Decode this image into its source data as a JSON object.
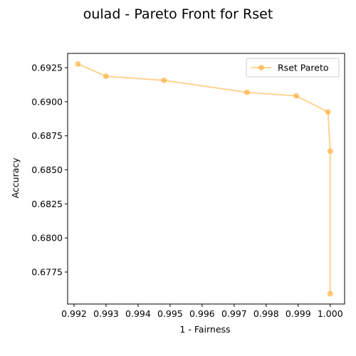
{
  "chart_data": {
    "type": "line",
    "title": "oulad - Pareto Front for Rset",
    "xlabel": "1 - Fairness",
    "ylabel": "Accuracy",
    "xlim": [
      0.9918,
      1.00045
    ],
    "ylim": [
      0.67515,
      0.69355
    ],
    "xticks": [
      0.992,
      0.993,
      0.994,
      0.995,
      0.996,
      0.997,
      0.998,
      0.999,
      1.0
    ],
    "xtick_labels": [
      "0.992",
      "0.993",
      "0.994",
      "0.995",
      "0.996",
      "0.997",
      "0.998",
      "0.999",
      "1.000"
    ],
    "yticks": [
      0.6775,
      0.68,
      0.6825,
      0.685,
      0.6875,
      0.69,
      0.6925
    ],
    "ytick_labels": [
      "0.6775",
      "0.6800",
      "0.6825",
      "0.6850",
      "0.6875",
      "0.6900",
      "0.6925"
    ],
    "legend_position": "top-right",
    "grid": false,
    "series": [
      {
        "name": "Rset Pareto",
        "color": "#ffa726",
        "x": [
          0.99212,
          0.993,
          0.99481,
          0.9974,
          0.99894,
          0.99993,
          1.0,
          1.0
        ],
        "y": [
          0.69277,
          0.69187,
          0.69157,
          0.69069,
          0.69043,
          0.68925,
          0.68637,
          0.6759
        ]
      }
    ]
  }
}
